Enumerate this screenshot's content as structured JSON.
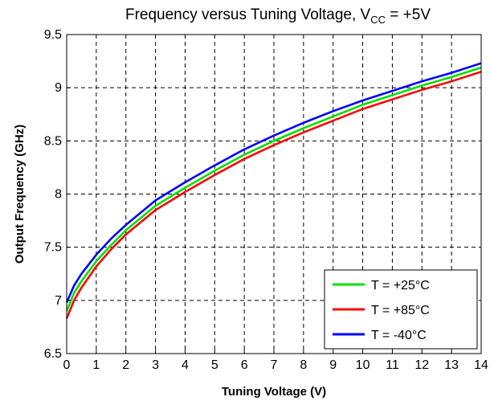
{
  "chart_data": {
    "type": "line",
    "title": "Frequency versus Tuning Voltage, V",
    "title_sub": "CC",
    "title_suffix": " = +5V",
    "xlabel": "Tuning Voltage (V)",
    "ylabel": "Output Frequency (GHz)",
    "xlim": [
      0,
      14
    ],
    "ylim": [
      6.5,
      9.5
    ],
    "xticks": [
      0,
      1,
      2,
      3,
      4,
      5,
      6,
      7,
      8,
      9,
      10,
      11,
      12,
      13,
      14
    ],
    "yticks": [
      6.5,
      7,
      7.5,
      8,
      8.5,
      9,
      9.5
    ],
    "grid": true,
    "legend_position": "bottom-right",
    "x": [
      0,
      0.25,
      0.5,
      1,
      1.5,
      2,
      3,
      4,
      5,
      6,
      7,
      8,
      9,
      10,
      11,
      12,
      13,
      14
    ],
    "series": [
      {
        "name": "T = +25°C",
        "color": "#00e000",
        "values": [
          6.9,
          7.07,
          7.18,
          7.37,
          7.52,
          7.66,
          7.89,
          8.06,
          8.22,
          8.37,
          8.5,
          8.62,
          8.73,
          8.84,
          8.93,
          9.02,
          9.1,
          9.19
        ]
      },
      {
        "name": "T = +85°C",
        "color": "#ff0000",
        "values": [
          6.83,
          7.0,
          7.12,
          7.32,
          7.48,
          7.62,
          7.85,
          8.02,
          8.18,
          8.33,
          8.46,
          8.58,
          8.69,
          8.8,
          8.89,
          8.98,
          9.06,
          9.15
        ]
      },
      {
        "name": "T = -40°C",
        "color": "#0000ff",
        "values": [
          6.98,
          7.14,
          7.25,
          7.43,
          7.58,
          7.71,
          7.94,
          8.11,
          8.27,
          8.42,
          8.55,
          8.67,
          8.78,
          8.88,
          8.97,
          9.06,
          9.14,
          9.23
        ]
      }
    ]
  }
}
